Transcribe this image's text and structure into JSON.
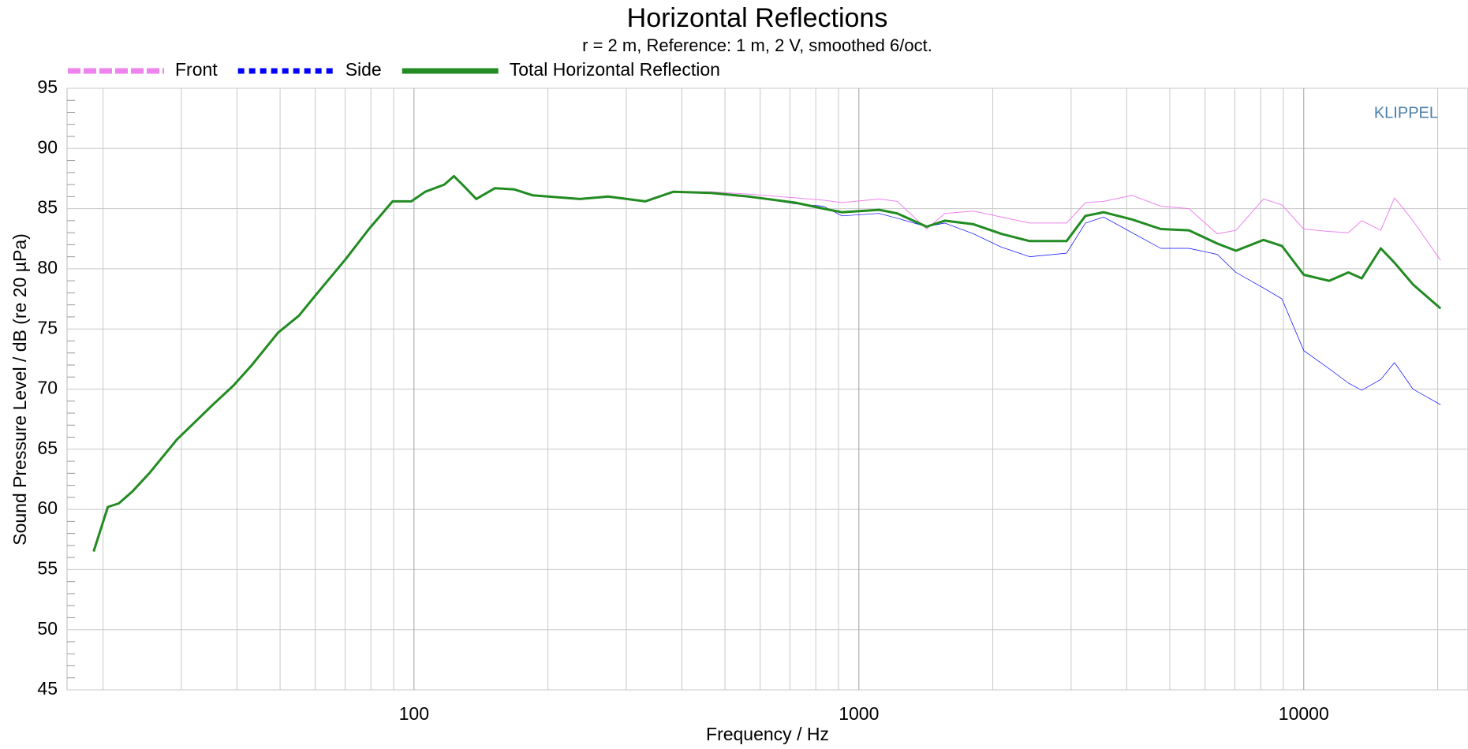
{
  "chart_data": {
    "type": "line",
    "title": "Horizontal Reflections",
    "subtitle": "r = 2 m,  Reference: 1 m, 2 V, smoothed 6/oct.",
    "xlabel": "Frequency / Hz",
    "ylabel": "Sound Pressure Level / dB (re 20 µPa)",
    "annotation": "KLIPPEL",
    "xscale": "log",
    "grid": true,
    "legend": "top-left",
    "xlim": [
      16.6,
      23400
    ],
    "ylim": [
      45,
      95
    ],
    "xticks": [
      100,
      1000,
      10000
    ],
    "xminor_ticks": [
      20,
      30,
      40,
      50,
      60,
      70,
      80,
      90,
      200,
      300,
      400,
      500,
      600,
      700,
      800,
      900,
      2000,
      3000,
      4000,
      5000,
      6000,
      7000,
      8000,
      9000,
      20000
    ],
    "yticks": [
      45,
      50,
      55,
      60,
      65,
      70,
      75,
      80,
      85,
      90,
      95
    ],
    "yminor_ticks": [
      46,
      47,
      48,
      49,
      51,
      52,
      53,
      54,
      56,
      57,
      58,
      59,
      61,
      62,
      63,
      64,
      66,
      67,
      68,
      69,
      71,
      72,
      73,
      74,
      76,
      77,
      78,
      79,
      81,
      82,
      83,
      84,
      86,
      87,
      88,
      89,
      91,
      92,
      93,
      94
    ],
    "x": [
      19.05,
      20.5,
      21.7,
      23.3,
      25.4,
      29.3,
      35.3,
      39.3,
      43.2,
      49.5,
      55.1,
      60.7,
      70.2,
      79.2,
      89.5,
      98.6,
      106,
      117,
      123,
      130,
      138,
      152,
      168,
      185,
      236,
      273,
      331,
      383,
      465,
      565,
      719,
      832,
      916,
      1110,
      1220,
      1420,
      1560,
      1810,
      2090,
      2420,
      2930,
      3230,
      3550,
      4110,
      4770,
      5520,
      6390,
      7040,
      8120,
      8930,
      10000,
      11400,
      12600,
      13500,
      14900,
      16000,
      17600,
      20300
    ],
    "series": [
      {
        "name": "Front",
        "color": "#ee82ee",
        "width": 1,
        "values": [
          56.5,
          60.2,
          60.5,
          61.5,
          63.0,
          65.8,
          68.7,
          70.3,
          72.0,
          74.7,
          76.1,
          78.0,
          80.8,
          83.3,
          85.6,
          85.6,
          86.4,
          87.0,
          87.7,
          86.8,
          85.8,
          86.7,
          86.6,
          86.1,
          85.8,
          86.0,
          85.6,
          86.4,
          86.4,
          86.2,
          85.9,
          85.7,
          85.5,
          85.8,
          85.6,
          83.3,
          84.6,
          84.8,
          84.3,
          83.8,
          83.8,
          85.5,
          85.6,
          86.1,
          85.2,
          85.0,
          82.9,
          83.2,
          85.8,
          85.3,
          83.3,
          83.1,
          83.0,
          84.0,
          83.2,
          85.9,
          84.0,
          80.7
        ]
      },
      {
        "name": "Side",
        "color": "#0000ff",
        "width": 0.7,
        "values": [
          56.5,
          60.2,
          60.5,
          61.5,
          63.0,
          65.8,
          68.7,
          70.3,
          72.0,
          74.7,
          76.1,
          78.0,
          80.8,
          83.3,
          85.6,
          85.6,
          86.4,
          87.0,
          87.7,
          86.8,
          85.8,
          86.7,
          86.6,
          86.1,
          85.8,
          86.0,
          85.6,
          86.4,
          86.3,
          86.0,
          85.4,
          85.2,
          84.4,
          84.6,
          84.2,
          83.5,
          83.8,
          82.9,
          81.8,
          81.0,
          81.3,
          83.8,
          84.3,
          83.0,
          81.7,
          81.7,
          81.2,
          79.7,
          78.4,
          77.5,
          73.2,
          71.7,
          70.5,
          69.9,
          70.8,
          72.2,
          70.0,
          68.7
        ]
      },
      {
        "name": "Total Horizontal Reflection",
        "color": "#228b22",
        "width": 3,
        "values": [
          56.5,
          60.2,
          60.5,
          61.5,
          63.0,
          65.8,
          68.7,
          70.3,
          72.0,
          74.7,
          76.1,
          78.0,
          80.8,
          83.3,
          85.6,
          85.6,
          86.4,
          87.0,
          87.7,
          86.8,
          85.8,
          86.7,
          86.6,
          86.1,
          85.8,
          86.0,
          85.6,
          86.4,
          86.3,
          86.0,
          85.5,
          85.0,
          84.7,
          84.9,
          84.6,
          83.5,
          84.0,
          83.7,
          82.9,
          82.3,
          82.3,
          84.4,
          84.7,
          84.1,
          83.3,
          83.2,
          82.1,
          81.5,
          82.4,
          81.9,
          79.5,
          79.0,
          79.7,
          79.2,
          81.7,
          80.5,
          78.7,
          76.7
        ]
      }
    ]
  }
}
